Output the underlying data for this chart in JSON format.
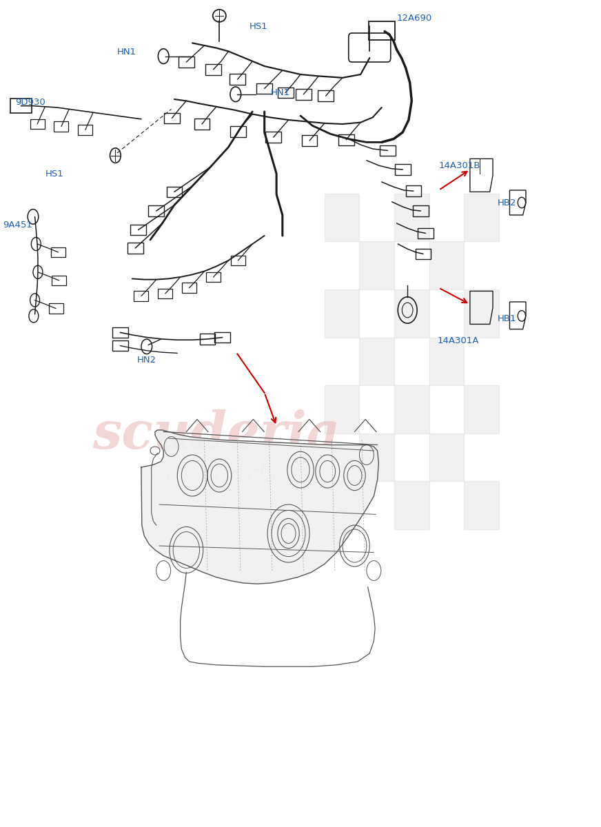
{
  "background_color": "#ffffff",
  "label_color": "#1a5fb4",
  "arrow_color": "#cc0000",
  "line_color": "#1a1a1a",
  "figsize": [
    8.72,
    12.0
  ],
  "dpi": 100,
  "label_positions": {
    "HS1_top": [
      0.415,
      0.968,
      "HS1"
    ],
    "HN1_left": [
      0.195,
      0.937,
      "HN1"
    ],
    "HN1_right": [
      0.45,
      0.888,
      "HN1"
    ],
    "12A690": [
      0.66,
      0.978,
      "12A690"
    ],
    "9D930": [
      0.025,
      0.876,
      "9D930"
    ],
    "HS1_lower": [
      0.075,
      0.79,
      "HS1"
    ],
    "9A451": [
      0.005,
      0.728,
      "9A451"
    ],
    "14A301B": [
      0.73,
      0.8,
      "14A301B"
    ],
    "HB2": [
      0.828,
      0.755,
      "HB2"
    ],
    "HB1": [
      0.828,
      0.615,
      "HB1"
    ],
    "14A301A": [
      0.728,
      0.588,
      "14A301A"
    ],
    "HN2": [
      0.228,
      0.565,
      "HN2"
    ]
  }
}
